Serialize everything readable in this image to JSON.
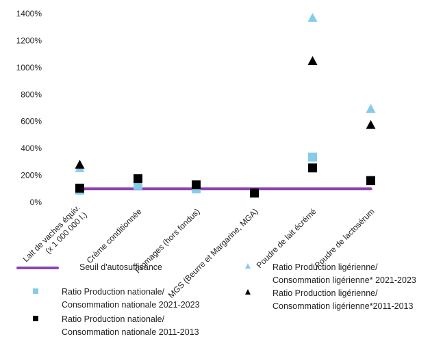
{
  "chart_data": {
    "type": "scatter",
    "categories": [
      "Lait de vaches équiv. (x 1 000 000 l.)",
      "Crème conditionnée",
      "Fromages (hors fondus)",
      "MGS (Beurre et Margarine, MGA)",
      "Poudre de lait écrémé",
      "Poudre de lactosérum"
    ],
    "ylim": [
      0,
      1400
    ],
    "yticks": [
      0,
      200,
      400,
      600,
      800,
      1000,
      1200,
      1400
    ],
    "ytick_labels": [
      "0%",
      "200%",
      "400%",
      "600%",
      "800%",
      "1000%",
      "1200%",
      "1400%"
    ],
    "grid": false,
    "series": [
      {
        "name": "Seuil d'autosuffisance",
        "kind": "line",
        "color": "#8B44B4",
        "values": [
          100,
          100,
          100,
          100,
          100,
          100
        ]
      },
      {
        "name": "Ratio Production nationale/ Consommation nationale 2021-2023",
        "kind": "square",
        "color": "#86CBEA",
        "values": [
          90,
          125,
          100,
          65,
          335,
          165
        ]
      },
      {
        "name": "Ratio Production nationale/ Consommation nationale 2011-2013",
        "kind": "square",
        "color": "#000000",
        "values": [
          105,
          175,
          130,
          70,
          255,
          160
        ]
      },
      {
        "name": "Ratio Production ligérienne/ Consommation ligérienne* 2021-2023",
        "kind": "triangle",
        "color": "#86CBEA",
        "values": [
          255,
          null,
          null,
          null,
          1370,
          695
        ]
      },
      {
        "name": "Ratio Production ligérienne/ Consommation ligérienne*2011-2013",
        "kind": "triangle",
        "color": "#000000",
        "values": [
          280,
          null,
          null,
          null,
          1050,
          575
        ]
      }
    ]
  },
  "legend": {
    "threshold": {
      "label": "Seuil d'autosuffisance"
    },
    "national_2021": {
      "line1": "Ratio Production nationale/",
      "line2": "Consommation nationale 2021-2023"
    },
    "national_2011": {
      "line1": "Ratio Production nationale/",
      "line2": "Consommation nationale 2011-2013"
    },
    "regional_2021": {
      "line1": "Ratio Production ligérienne/",
      "line2": "Consommation ligérienne* 2021-2023"
    },
    "regional_2011": {
      "line1": "Ratio Production ligérienne/",
      "line2": "Consommation ligérienne*2011-2013"
    }
  }
}
